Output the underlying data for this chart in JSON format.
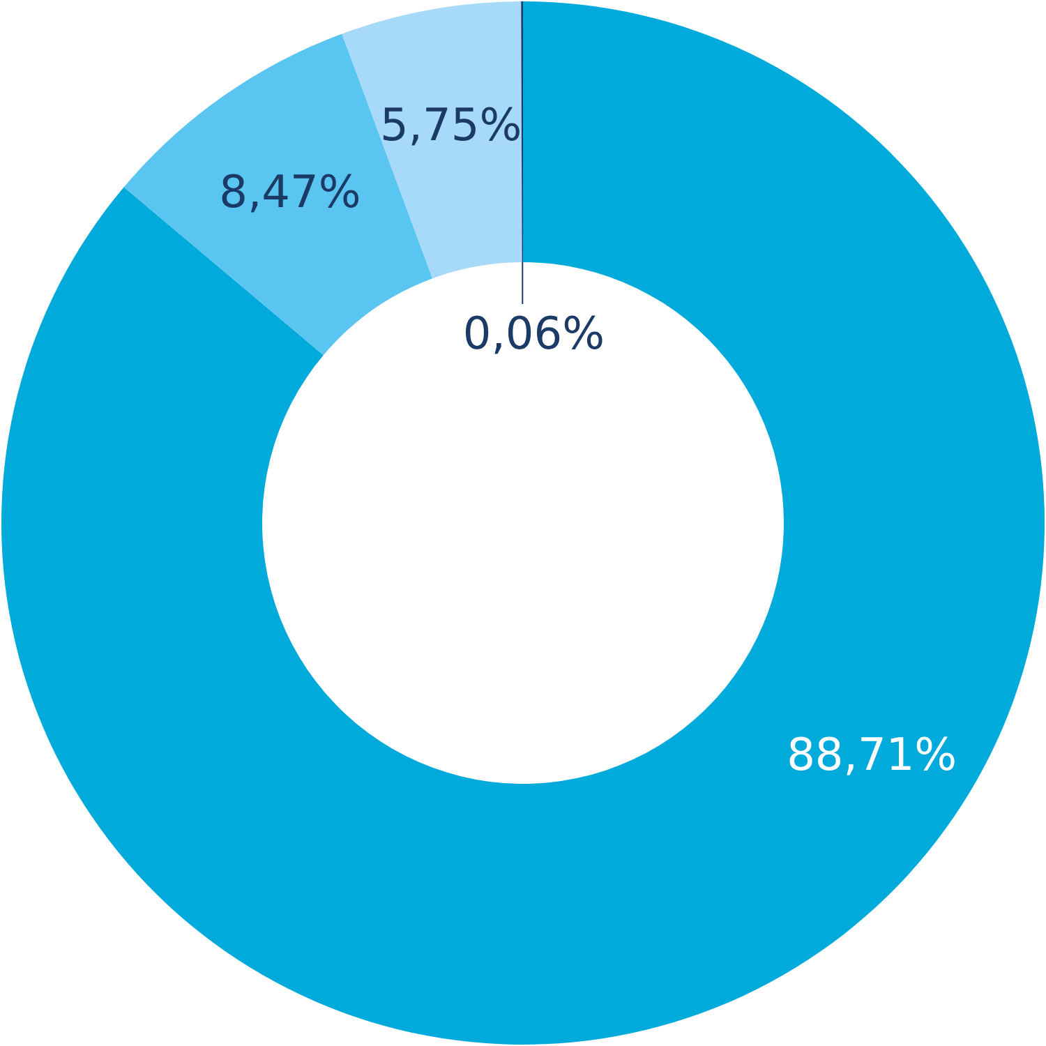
{
  "chart_data": {
    "type": "donut",
    "categories": [
      null,
      null,
      null,
      null
    ],
    "values": [
      88.71,
      8.47,
      5.75,
      0.06
    ],
    "colors": [
      "#00aadb",
      "#5bc5f2",
      "#a6daf8",
      "#1b3a66"
    ],
    "value_labels": [
      "88,71%",
      "8,47%",
      "5,75%",
      "0,06%"
    ]
  }
}
